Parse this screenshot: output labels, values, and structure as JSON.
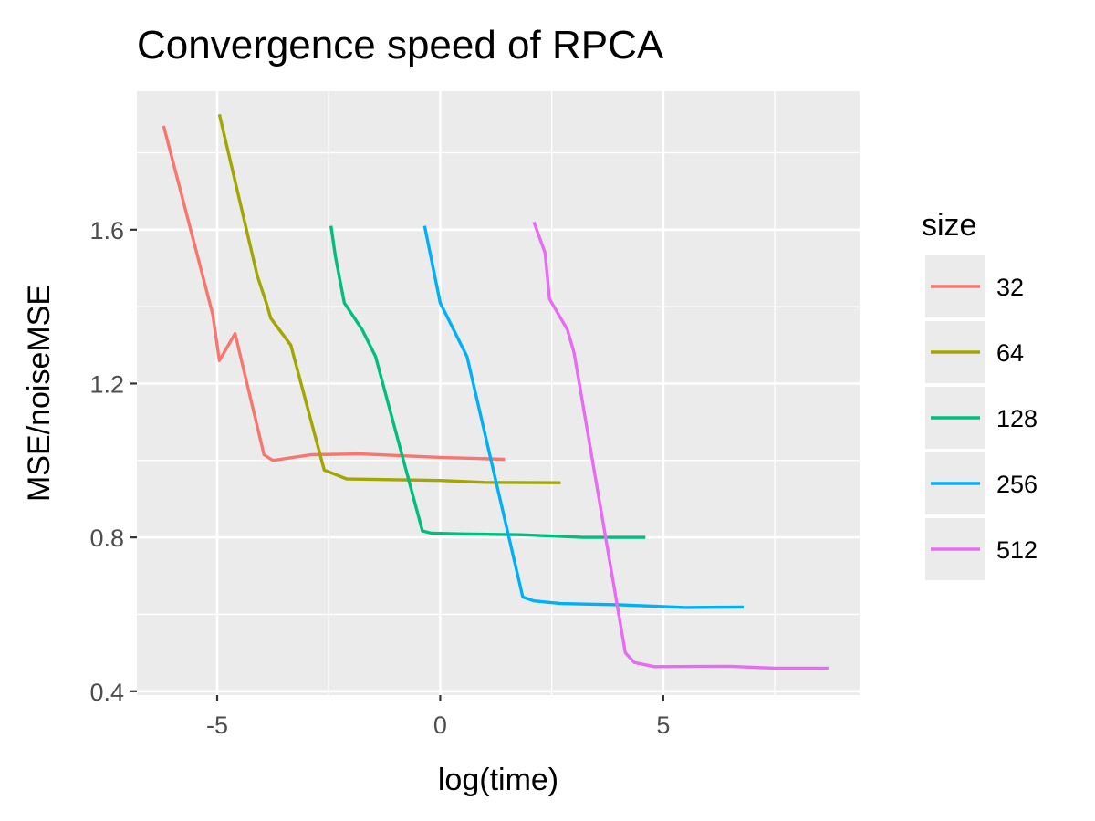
{
  "chart_data": {
    "type": "line",
    "title": "Convergence speed of RPCA",
    "xlabel": "log(time)",
    "ylabel": "MSE/noiseMSE",
    "xlim": [
      -6.8,
      9.4
    ],
    "ylim": [
      0.39,
      1.96
    ],
    "x_ticks": [
      -5,
      0,
      5
    ],
    "x_tick_labels": [
      "-5",
      "0",
      "5"
    ],
    "y_ticks": [
      0.4,
      0.8,
      1.2,
      1.6
    ],
    "y_tick_labels": [
      "0.4",
      "0.8",
      "1.2",
      "1.6"
    ],
    "grid": true,
    "legend": {
      "title": "size",
      "position": "right"
    },
    "series": [
      {
        "name": "32",
        "color": "#F8766D",
        "points": [
          [
            -6.2,
            1.87
          ],
          [
            -5.1,
            1.38
          ],
          [
            -4.95,
            1.26
          ],
          [
            -4.6,
            1.33
          ],
          [
            -3.95,
            1.015
          ],
          [
            -3.75,
            1.0
          ],
          [
            -2.9,
            1.015
          ],
          [
            -1.8,
            1.017
          ],
          [
            0.0,
            1.008
          ],
          [
            1.45,
            1.003
          ]
        ]
      },
      {
        "name": "64",
        "color": "#A3A500",
        "points": [
          [
            -4.95,
            1.9
          ],
          [
            -4.1,
            1.48
          ],
          [
            -3.9,
            1.41
          ],
          [
            -3.8,
            1.37
          ],
          [
            -3.35,
            1.3
          ],
          [
            -2.6,
            0.975
          ],
          [
            -2.1,
            0.952
          ],
          [
            0.0,
            0.948
          ],
          [
            1.0,
            0.943
          ],
          [
            2.7,
            0.942
          ]
        ]
      },
      {
        "name": "128",
        "color": "#00BF7D",
        "points": [
          [
            -2.45,
            1.61
          ],
          [
            -2.35,
            1.53
          ],
          [
            -2.15,
            1.41
          ],
          [
            -1.75,
            1.34
          ],
          [
            -1.45,
            1.27
          ],
          [
            -0.4,
            0.817
          ],
          [
            -0.2,
            0.811
          ],
          [
            0.5,
            0.809
          ],
          [
            1.8,
            0.807
          ],
          [
            3.2,
            0.8
          ],
          [
            4.6,
            0.8
          ]
        ]
      },
      {
        "name": "256",
        "color": "#00B0F6",
        "points": [
          [
            -0.35,
            1.61
          ],
          [
            0.0,
            1.41
          ],
          [
            0.3,
            1.34
          ],
          [
            0.6,
            1.27
          ],
          [
            1.85,
            0.645
          ],
          [
            2.1,
            0.635
          ],
          [
            2.7,
            0.628
          ],
          [
            4.0,
            0.625
          ],
          [
            5.5,
            0.618
          ],
          [
            6.8,
            0.619
          ]
        ]
      },
      {
        "name": "512",
        "color": "#E76BF3",
        "points": [
          [
            2.1,
            1.62
          ],
          [
            2.35,
            1.54
          ],
          [
            2.4,
            1.48
          ],
          [
            2.45,
            1.42
          ],
          [
            2.85,
            1.34
          ],
          [
            3.0,
            1.28
          ],
          [
            4.15,
            0.5
          ],
          [
            4.35,
            0.475
          ],
          [
            4.8,
            0.464
          ],
          [
            6.5,
            0.465
          ],
          [
            7.5,
            0.46
          ],
          [
            8.7,
            0.46
          ]
        ]
      }
    ]
  }
}
